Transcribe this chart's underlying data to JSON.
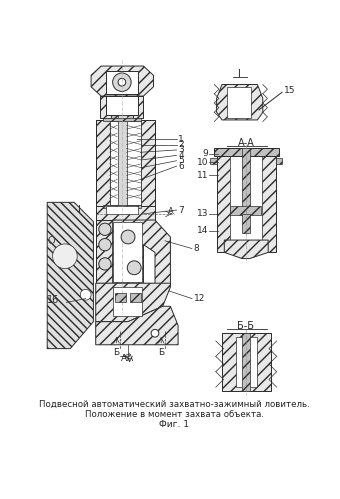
{
  "title_line1": "Подвесной автоматический захватно-зажимный ловитель.",
  "title_line2": "Положение в момент захвата объекта.",
  "fig_label": "Фиг. 1",
  "bg_color": "#ffffff",
  "lc": "#2a2a2a",
  "hatch_lc": "#555555"
}
